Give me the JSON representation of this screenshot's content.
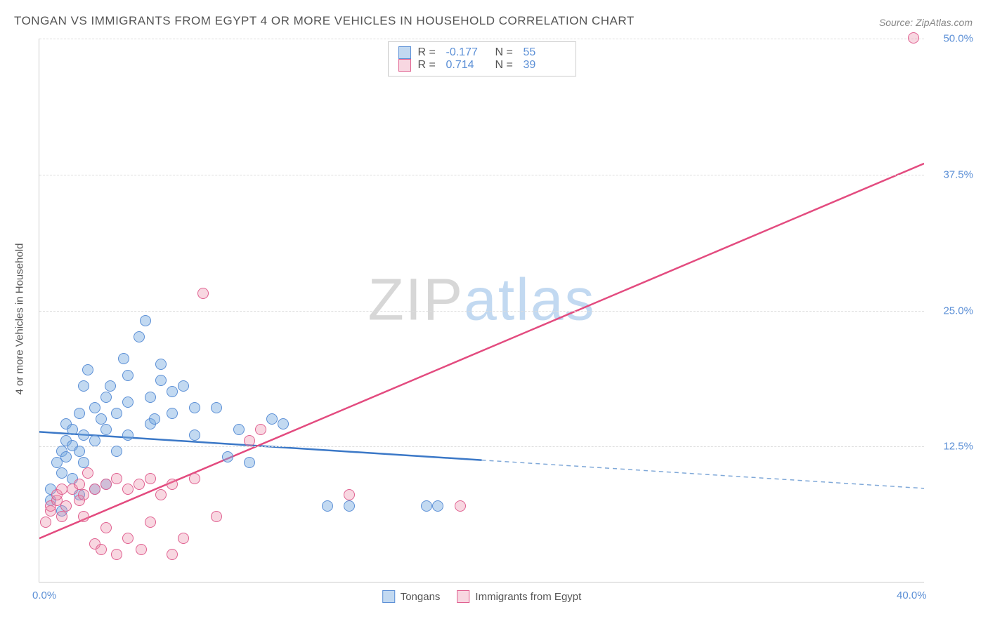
{
  "title": "TONGAN VS IMMIGRANTS FROM EGYPT 4 OR MORE VEHICLES IN HOUSEHOLD CORRELATION CHART",
  "source": "Source: ZipAtlas.com",
  "ylabel": "4 or more Vehicles in Household",
  "watermark_a": "ZIP",
  "watermark_b": "atlas",
  "chart": {
    "type": "scatter",
    "xlim": [
      0,
      40
    ],
    "ylim": [
      0,
      50
    ],
    "yticks": [
      12.5,
      25.0,
      37.5,
      50.0
    ],
    "ytick_labels": [
      "12.5%",
      "25.0%",
      "37.5%",
      "50.0%"
    ],
    "xticks": [
      0,
      40
    ],
    "xtick_labels": [
      "0.0%",
      "40.0%"
    ],
    "background_color": "#ffffff",
    "grid_color": "#dddddd",
    "series": [
      {
        "name": "Tongans",
        "color_fill": "rgba(120,170,225,0.45)",
        "color_stroke": "#5b8fd6",
        "R": "-0.177",
        "N": "55",
        "trend": {
          "x1": 0,
          "y1": 13.8,
          "x2": 20,
          "y2": 11.2,
          "extrap_x2": 40,
          "extrap_y2": 8.6,
          "solid_color": "#3b78c7",
          "dash_color": "#7fa8d8"
        },
        "points": [
          [
            0.5,
            7.5
          ],
          [
            0.5,
            8.5
          ],
          [
            0.8,
            11.0
          ],
          [
            1.0,
            12.0
          ],
          [
            1.0,
            10.0
          ],
          [
            1.2,
            13.0
          ],
          [
            1.2,
            14.5
          ],
          [
            1.2,
            11.5
          ],
          [
            1.5,
            12.5
          ],
          [
            1.5,
            9.5
          ],
          [
            1.5,
            14.0
          ],
          [
            1.8,
            12.0
          ],
          [
            1.8,
            15.5
          ],
          [
            2.0,
            11.0
          ],
          [
            2.0,
            13.5
          ],
          [
            2.0,
            18.0
          ],
          [
            2.2,
            19.5
          ],
          [
            2.5,
            13.0
          ],
          [
            2.5,
            16.0
          ],
          [
            2.8,
            15.0
          ],
          [
            3.0,
            14.0
          ],
          [
            3.0,
            17.0
          ],
          [
            3.2,
            18.0
          ],
          [
            3.5,
            12.0
          ],
          [
            3.5,
            15.5
          ],
          [
            3.8,
            20.5
          ],
          [
            4.0,
            13.5
          ],
          [
            4.0,
            16.5
          ],
          [
            4.0,
            19.0
          ],
          [
            4.5,
            22.5
          ],
          [
            4.8,
            24.0
          ],
          [
            5.0,
            14.5
          ],
          [
            5.0,
            17.0
          ],
          [
            5.2,
            15.0
          ],
          [
            5.5,
            20.0
          ],
          [
            5.5,
            18.5
          ],
          [
            6.0,
            15.5
          ],
          [
            6.0,
            17.5
          ],
          [
            6.5,
            18.0
          ],
          [
            7.0,
            13.5
          ],
          [
            7.0,
            16.0
          ],
          [
            8.0,
            16.0
          ],
          [
            8.5,
            11.5
          ],
          [
            9.0,
            14.0
          ],
          [
            9.5,
            11.0
          ],
          [
            10.5,
            15.0
          ],
          [
            11.0,
            14.5
          ],
          [
            13.0,
            7.0
          ],
          [
            14.0,
            7.0
          ],
          [
            17.5,
            7.0
          ],
          [
            18.0,
            7.0
          ],
          [
            3.0,
            9.0
          ],
          [
            2.5,
            8.5
          ],
          [
            1.0,
            6.5
          ],
          [
            1.8,
            8.0
          ]
        ]
      },
      {
        "name": "Immigrants from Egypt",
        "color_fill": "rgba(235,140,170,0.35)",
        "color_stroke": "#e06090",
        "R": "0.714",
        "N": "39",
        "trend": {
          "x1": 0,
          "y1": 4.0,
          "x2": 40,
          "y2": 38.5,
          "solid_color": "#e34b7f"
        },
        "points": [
          [
            0.3,
            5.5
          ],
          [
            0.5,
            6.5
          ],
          [
            0.5,
            7.0
          ],
          [
            0.8,
            7.5
          ],
          [
            0.8,
            8.0
          ],
          [
            1.0,
            6.0
          ],
          [
            1.0,
            8.5
          ],
          [
            1.2,
            7.0
          ],
          [
            1.5,
            8.5
          ],
          [
            1.8,
            9.0
          ],
          [
            1.8,
            7.5
          ],
          [
            2.0,
            8.0
          ],
          [
            2.0,
            6.0
          ],
          [
            2.2,
            10.0
          ],
          [
            2.5,
            3.5
          ],
          [
            2.5,
            8.5
          ],
          [
            2.8,
            3.0
          ],
          [
            3.0,
            9.0
          ],
          [
            3.0,
            5.0
          ],
          [
            3.5,
            2.5
          ],
          [
            3.5,
            9.5
          ],
          [
            4.0,
            8.5
          ],
          [
            4.0,
            4.0
          ],
          [
            4.5,
            9.0
          ],
          [
            4.6,
            3.0
          ],
          [
            5.0,
            9.5
          ],
          [
            5.0,
            5.5
          ],
          [
            5.5,
            8.0
          ],
          [
            6.0,
            2.5
          ],
          [
            6.0,
            9.0
          ],
          [
            6.5,
            4.0
          ],
          [
            7.0,
            9.5
          ],
          [
            7.4,
            26.5
          ],
          [
            8.0,
            6.0
          ],
          [
            9.5,
            13.0
          ],
          [
            10.0,
            14.0
          ],
          [
            14.0,
            8.0
          ],
          [
            19.0,
            7.0
          ],
          [
            39.5,
            50.0
          ]
        ]
      }
    ]
  },
  "legend_bottom": [
    "Tongans",
    "Immigrants from Egypt"
  ]
}
